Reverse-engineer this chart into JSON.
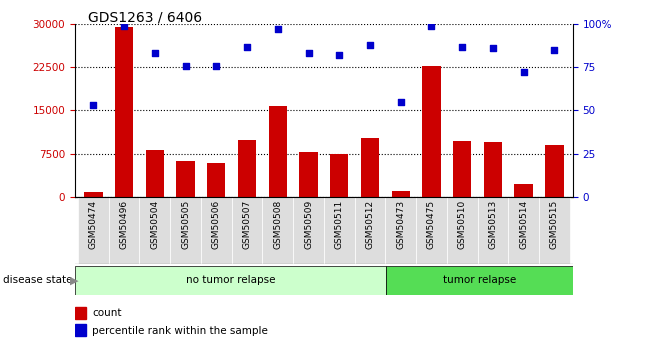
{
  "title": "GDS1263 / 6406",
  "samples": [
    "GSM50474",
    "GSM50496",
    "GSM50504",
    "GSM50505",
    "GSM50506",
    "GSM50507",
    "GSM50508",
    "GSM50509",
    "GSM50511",
    "GSM50512",
    "GSM50473",
    "GSM50475",
    "GSM50510",
    "GSM50513",
    "GSM50514",
    "GSM50515"
  ],
  "counts": [
    800,
    29500,
    8200,
    6200,
    5900,
    9800,
    15800,
    7800,
    7500,
    10200,
    1000,
    22800,
    9600,
    9500,
    2200,
    9000
  ],
  "percentiles": [
    53,
    99,
    83,
    76,
    76,
    87,
    97,
    83,
    82,
    88,
    55,
    99,
    87,
    86,
    72,
    85
  ],
  "no_tumor_count": 10,
  "tumor_count": 6,
  "bar_color": "#cc0000",
  "dot_color": "#0000cc",
  "no_tumor_bg": "#ccffcc",
  "tumor_bg": "#55dd55",
  "xtick_bg": "#dddddd",
  "ylim_left": [
    0,
    30000
  ],
  "ylim_right": [
    0,
    100
  ],
  "yticks_left": [
    0,
    7500,
    15000,
    22500,
    30000
  ],
  "yticks_right": [
    0,
    25,
    50,
    75,
    100
  ],
  "right_tick_labels": [
    "0",
    "25",
    "50",
    "75",
    "100%"
  ]
}
